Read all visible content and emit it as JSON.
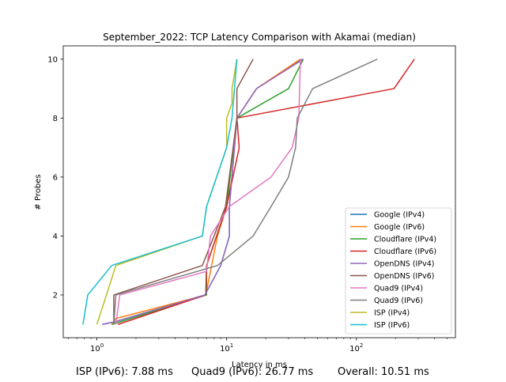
{
  "chart_data": {
    "type": "line",
    "title": "September_2022: TCP Latency Comparison with Akamai (median)",
    "xlabel": "Latency in ms",
    "ylabel": "# Probes",
    "xscale": "log",
    "xlim": [
      0.55,
      580
    ],
    "ylim": [
      0.55,
      10.45
    ],
    "xticks": [
      {
        "value": 1,
        "label": "10^0"
      },
      {
        "value": 10,
        "label": "10^1"
      },
      {
        "value": 100,
        "label": "10^2"
      }
    ],
    "yticks": [
      2,
      4,
      6,
      8,
      10
    ],
    "grid": false,
    "legend_position": "lower-right",
    "series": [
      {
        "name": "Google (IPv4)",
        "color": "#1f77b4",
        "x": [
          1.1,
          1.4,
          6.8,
          9.0,
          10.5,
          10.5,
          12.0,
          17.0,
          38.0
        ],
        "y": [
          1,
          1.1,
          2,
          3,
          4,
          5,
          8,
          9,
          10
        ]
      },
      {
        "name": "Google (IPv6)",
        "color": "#ff7f0e",
        "x": [
          1.3,
          1.4,
          6.9,
          8.5,
          10.0,
          11.0,
          12.0,
          17.0,
          37.0
        ],
        "y": [
          1,
          1.2,
          2,
          4,
          5,
          6,
          8,
          9,
          10
        ]
      },
      {
        "name": "Cloudflare (IPv4)",
        "color": "#2ca02c",
        "x": [
          1.3,
          7.0,
          7.0,
          10.0,
          12.0,
          30.0,
          39.0
        ],
        "y": [
          1,
          2,
          3,
          5,
          8,
          9,
          10
        ]
      },
      {
        "name": "Cloudflare (IPv6)",
        "color": "#d62728",
        "x": [
          1.45,
          6.9,
          7.0,
          10.0,
          12.5,
          12.0,
          195.0,
          280.0
        ],
        "y": [
          1,
          2,
          3,
          5,
          7,
          8,
          9,
          10
        ]
      },
      {
        "name": "OpenDNS (IPv4)",
        "color": "#9467bd",
        "x": [
          1.1,
          1.4,
          6.8,
          9.0,
          10.5,
          10.5,
          12.0,
          17.0,
          39.0
        ],
        "y": [
          1,
          1.1,
          2,
          3,
          4,
          5,
          8,
          9,
          10
        ]
      },
      {
        "name": "OpenDNS (IPv6)",
        "color": "#8c564b",
        "x": [
          1.35,
          1.35,
          6.5,
          8.0,
          9.8,
          12.0,
          12.0,
          16.0
        ],
        "y": [
          1,
          2,
          3,
          4,
          5,
          8,
          9,
          10
        ]
      },
      {
        "name": "Quad9 (IPv4)",
        "color": "#e377c2",
        "x": [
          1.4,
          1.5,
          7.0,
          7.5,
          10.5,
          22.0,
          32.0,
          36.0,
          37.0
        ],
        "y": [
          1,
          2,
          2.8,
          4,
          5,
          6,
          7,
          8,
          10
        ]
      },
      {
        "name": "Quad9 (IPv6)",
        "color": "#7f7f7f",
        "x": [
          1.35,
          1.4,
          8.5,
          16.0,
          22.0,
          30.0,
          34.0,
          35.0,
          46.0,
          145.0
        ],
        "y": [
          1,
          2,
          3,
          4,
          5,
          6,
          7,
          8,
          9,
          10
        ]
      },
      {
        "name": "ISP (IPv4)",
        "color": "#bcbd22",
        "x": [
          1.0,
          1.4,
          6.5,
          7.0,
          10.0,
          10.0,
          11.0,
          11.0,
          12.0
        ],
        "y": [
          1,
          3,
          4,
          5,
          7,
          8,
          8.5,
          9,
          10
        ]
      },
      {
        "name": "ISP (IPv6)",
        "color": "#17becf",
        "x": [
          0.78,
          0.85,
          1.3,
          6.5,
          7.0,
          10.0,
          11.0,
          12.0
        ],
        "y": [
          1,
          2,
          3,
          4,
          5,
          7,
          8,
          10
        ]
      }
    ]
  },
  "footer": {
    "isp": "ISP (IPv6): 7.88 ms",
    "quad9": "Quad9 (IPv6): 26.77 ms",
    "overall": "Overall: 10.51 ms"
  }
}
